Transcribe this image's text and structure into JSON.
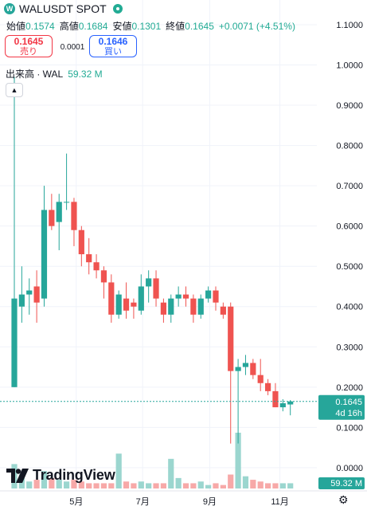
{
  "header": {
    "symbol": "WALUSDT SPOT",
    "logo_letter": "W",
    "open_label": "始値",
    "open": "0.1574",
    "high_label": "高値",
    "high": "0.1684",
    "low_label": "安値",
    "low": "0.1301",
    "close_label": "終値",
    "close": "0.1645",
    "change": "+0.0071 (+4.51%)"
  },
  "trade": {
    "sell_price": "0.1645",
    "sell_label": "売り",
    "spread": "0.0001",
    "buy_price": "0.1646",
    "buy_label": "買い"
  },
  "volume_legend": {
    "label": "出来高 · WAL",
    "value": "59.32 M"
  },
  "brand": "TradingView",
  "colors": {
    "up": "#26a69a",
    "down": "#ef5350",
    "up_volume": "#9bd6cf",
    "down_volume": "#f7a9a8",
    "accent": "#2962ff"
  },
  "chart_data": {
    "type": "candlestick",
    "interval": "1W",
    "ylim": [
      -0.02,
      1.12
    ],
    "y_ticks": [
      "0.0000",
      "0.1000",
      "0.2000",
      "0.3000",
      "0.4000",
      "0.5000",
      "0.6000",
      "0.7000",
      "0.8000",
      "0.9000",
      "1.0000",
      "1.1000"
    ],
    "x_ticks": [
      "5月",
      "7月",
      "9月",
      "11月"
    ],
    "x_tick_index": [
      8.3,
      17.2,
      26.2,
      35.6
    ],
    "last_price_label": "0.1645",
    "countdown_label": "4d 16h",
    "volume_label": "59.32 M",
    "candles": [
      {
        "o": 0.2,
        "h": 0.97,
        "l": 0.2,
        "c": 0.42,
        "v": 14
      },
      {
        "o": 0.4,
        "h": 0.5,
        "l": 0.36,
        "c": 0.43,
        "v": 8
      },
      {
        "o": 0.43,
        "h": 0.47,
        "l": 0.38,
        "c": 0.44,
        "v": 4
      },
      {
        "o": 0.45,
        "h": 0.49,
        "l": 0.36,
        "c": 0.41,
        "v": 5
      },
      {
        "o": 0.42,
        "h": 0.7,
        "l": 0.4,
        "c": 0.64,
        "v": 10
      },
      {
        "o": 0.64,
        "h": 0.68,
        "l": 0.59,
        "c": 0.6,
        "v": 6
      },
      {
        "o": 0.61,
        "h": 0.68,
        "l": 0.54,
        "c": 0.66,
        "v": 5
      },
      {
        "o": 0.66,
        "h": 0.78,
        "l": 0.64,
        "c": 0.66,
        "v": 4
      },
      {
        "o": 0.66,
        "h": 0.67,
        "l": 0.55,
        "c": 0.59,
        "v": 5
      },
      {
        "o": 0.59,
        "h": 0.6,
        "l": 0.5,
        "c": 0.53,
        "v": 4
      },
      {
        "o": 0.53,
        "h": 0.57,
        "l": 0.48,
        "c": 0.51,
        "v": 3
      },
      {
        "o": 0.51,
        "h": 0.53,
        "l": 0.47,
        "c": 0.49,
        "v": 3
      },
      {
        "o": 0.49,
        "h": 0.5,
        "l": 0.42,
        "c": 0.46,
        "v": 3
      },
      {
        "o": 0.46,
        "h": 0.48,
        "l": 0.36,
        "c": 0.38,
        "v": 3
      },
      {
        "o": 0.38,
        "h": 0.44,
        "l": 0.37,
        "c": 0.43,
        "v": 20
      },
      {
        "o": 0.42,
        "h": 0.46,
        "l": 0.37,
        "c": 0.39,
        "v": 4
      },
      {
        "o": 0.41,
        "h": 0.42,
        "l": 0.37,
        "c": 0.4,
        "v": 3
      },
      {
        "o": 0.39,
        "h": 0.48,
        "l": 0.38,
        "c": 0.45,
        "v": 4
      },
      {
        "o": 0.45,
        "h": 0.49,
        "l": 0.41,
        "c": 0.47,
        "v": 3
      },
      {
        "o": 0.47,
        "h": 0.49,
        "l": 0.4,
        "c": 0.42,
        "v": 3
      },
      {
        "o": 0.41,
        "h": 0.42,
        "l": 0.36,
        "c": 0.38,
        "v": 3
      },
      {
        "o": 0.38,
        "h": 0.43,
        "l": 0.36,
        "c": 0.42,
        "v": 17
      },
      {
        "o": 0.42,
        "h": 0.45,
        "l": 0.4,
        "c": 0.43,
        "v": 6
      },
      {
        "o": 0.43,
        "h": 0.45,
        "l": 0.4,
        "c": 0.42,
        "v": 3
      },
      {
        "o": 0.42,
        "h": 0.43,
        "l": 0.36,
        "c": 0.38,
        "v": 3
      },
      {
        "o": 0.38,
        "h": 0.43,
        "l": 0.37,
        "c": 0.42,
        "v": 4
      },
      {
        "o": 0.42,
        "h": 0.45,
        "l": 0.41,
        "c": 0.44,
        "v": 2
      },
      {
        "o": 0.44,
        "h": 0.45,
        "l": 0.39,
        "c": 0.41,
        "v": 3
      },
      {
        "o": 0.4,
        "h": 0.41,
        "l": 0.37,
        "c": 0.38,
        "v": 2
      },
      {
        "o": 0.4,
        "h": 0.41,
        "l": 0.06,
        "c": 0.24,
        "v": 8
      },
      {
        "o": 0.24,
        "h": 0.27,
        "l": 0.06,
        "c": 0.25,
        "v": 32
      },
      {
        "o": 0.25,
        "h": 0.28,
        "l": 0.23,
        "c": 0.26,
        "v": 7
      },
      {
        "o": 0.26,
        "h": 0.27,
        "l": 0.22,
        "c": 0.23,
        "v": 5
      },
      {
        "o": 0.23,
        "h": 0.27,
        "l": 0.19,
        "c": 0.21,
        "v": 4
      },
      {
        "o": 0.21,
        "h": 0.22,
        "l": 0.18,
        "c": 0.19,
        "v": 3
      },
      {
        "o": 0.19,
        "h": 0.21,
        "l": 0.15,
        "c": 0.15,
        "v": 3
      },
      {
        "o": 0.15,
        "h": 0.17,
        "l": 0.14,
        "c": 0.16,
        "v": 3
      },
      {
        "o": 0.157,
        "h": 0.168,
        "l": 0.13,
        "c": 0.1645,
        "v": 3
      }
    ]
  }
}
